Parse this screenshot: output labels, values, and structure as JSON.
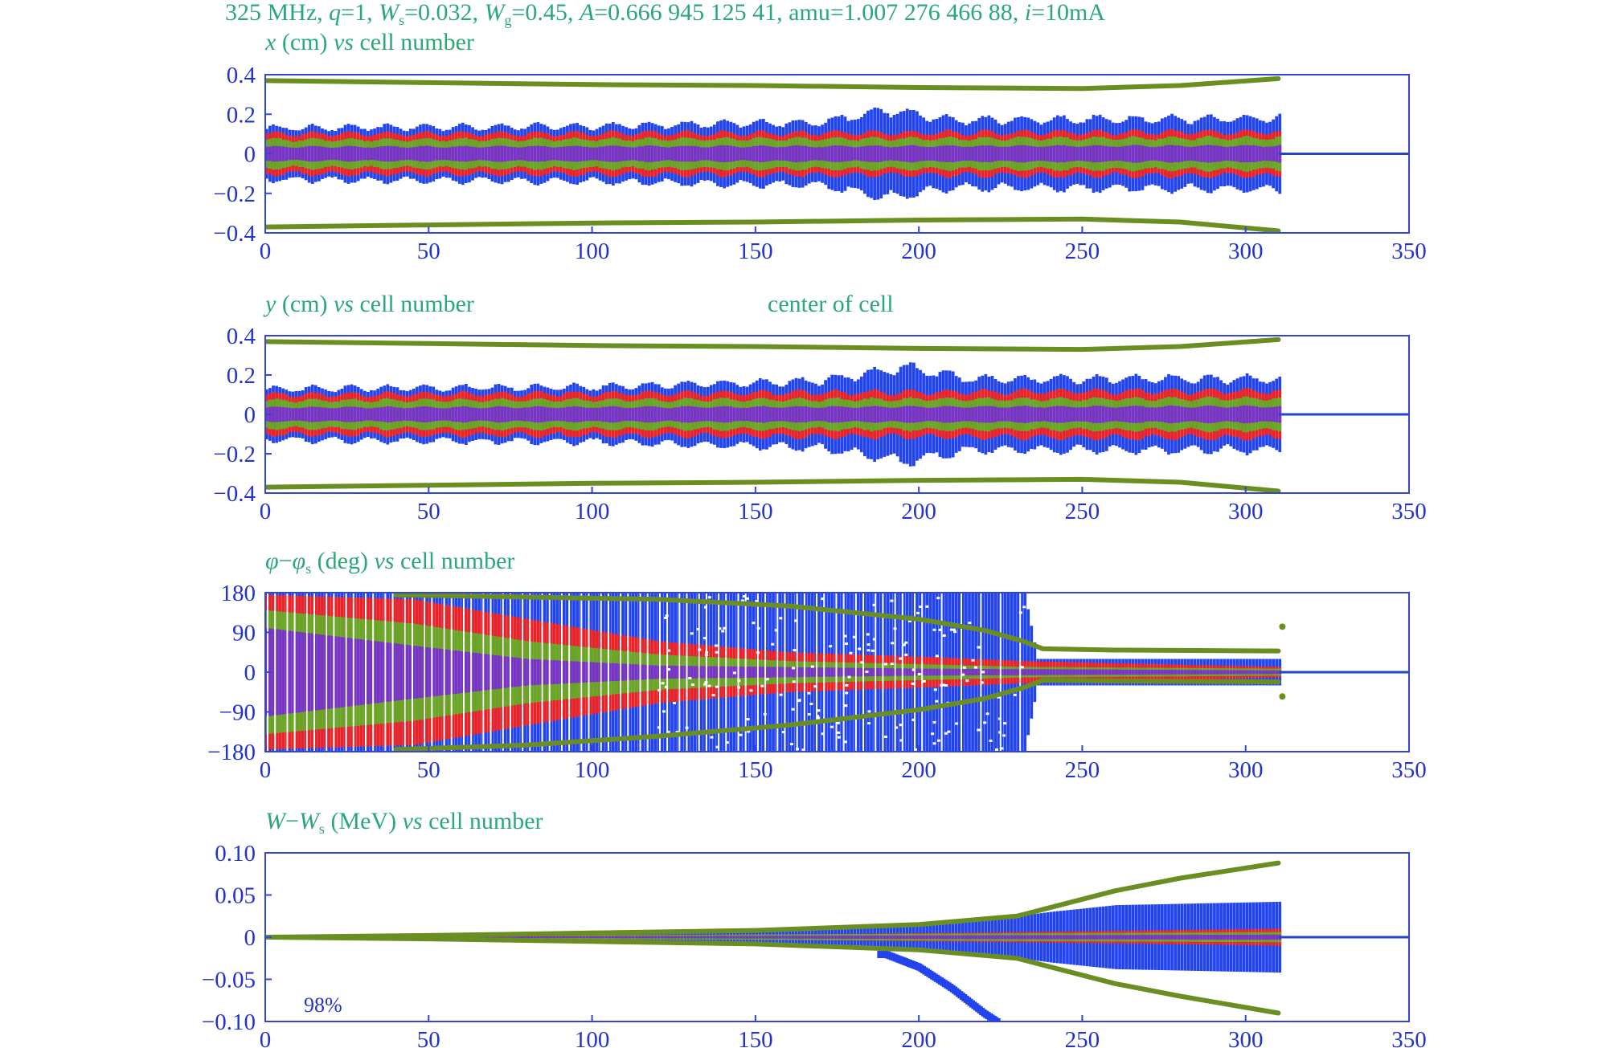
{
  "title": {
    "parts": [
      {
        "t": "325 MHz, "
      },
      {
        "t": "q",
        "i": true
      },
      {
        "t": "=1, "
      },
      {
        "t": "W",
        "i": true
      },
      {
        "t": "s",
        "sub": true
      },
      {
        "t": "=0.032, "
      },
      {
        "t": "W",
        "i": true
      },
      {
        "t": "g",
        "sub": true
      },
      {
        "t": "=0.45, "
      },
      {
        "t": "A",
        "i": true
      },
      {
        "t": "=0.666 945 125 41, amu=1.007 276 466 88, "
      },
      {
        "t": "i",
        "i": true
      },
      {
        "t": "=10mA"
      }
    ]
  },
  "colors": {
    "frame": "#3344dd",
    "tick_text": "#2233cc",
    "label_text": "#2aa878",
    "particles_outer": "#2244ee",
    "particles_red": "#ee2222",
    "particles_green": "#66aa22",
    "particles_core": "#7733cc",
    "envelope": "#6b8e23",
    "reference_line": "#2244cc"
  },
  "chart_data": [
    {
      "type": "scatter",
      "label_parts": [
        {
          "t": "x",
          "i": true
        },
        {
          "t": " (cm) "
        },
        {
          "t": "vs",
          "i": true
        },
        {
          "t": " cell number"
        }
      ],
      "xlim": [
        0,
        350
      ],
      "ylim": [
        -0.4,
        0.4
      ],
      "xticks": [
        0,
        50,
        100,
        150,
        200,
        250,
        300,
        350
      ],
      "yticks": [
        {
          "v": 0.4,
          "l": "0.4"
        },
        {
          "v": 0.2,
          "l": "0.2"
        },
        {
          "v": 0,
          "l": "0"
        },
        {
          "v": -0.2,
          "l": "−0.2"
        },
        {
          "v": -0.4,
          "l": "−0.4"
        }
      ],
      "end_cell": 310,
      "envelope_upper": [
        [
          0,
          0.37
        ],
        [
          50,
          0.36
        ],
        [
          100,
          0.35
        ],
        [
          150,
          0.345
        ],
        [
          200,
          0.335
        ],
        [
          250,
          0.33
        ],
        [
          280,
          0.345
        ],
        [
          310,
          0.38
        ]
      ],
      "envelope_lower": [
        [
          0,
          -0.37
        ],
        [
          50,
          -0.36
        ],
        [
          100,
          -0.35
        ],
        [
          150,
          -0.345
        ],
        [
          200,
          -0.335
        ],
        [
          250,
          -0.33
        ],
        [
          280,
          -0.345
        ],
        [
          310,
          -0.39
        ]
      ],
      "blue_half": [
        [
          0,
          0.13
        ],
        [
          100,
          0.14
        ],
        [
          170,
          0.16
        ],
        [
          190,
          0.22
        ],
        [
          210,
          0.17
        ],
        [
          310,
          0.18
        ]
      ],
      "red_half": [
        [
          0,
          0.1
        ],
        [
          310,
          0.11
        ]
      ],
      "green_half": [
        [
          0,
          0.07
        ],
        [
          310,
          0.08
        ]
      ],
      "core_half": [
        [
          0,
          0.035
        ],
        [
          310,
          0.04
        ]
      ],
      "center_offset": 0
    },
    {
      "type": "scatter",
      "label_parts": [
        {
          "t": "y",
          "i": true
        },
        {
          "t": " (cm) "
        },
        {
          "t": "vs",
          "i": true
        },
        {
          "t": " cell number"
        }
      ],
      "annotation": "center of cell",
      "xlim": [
        0,
        350
      ],
      "ylim": [
        -0.4,
        0.4
      ],
      "xticks": [
        0,
        50,
        100,
        150,
        200,
        250,
        300,
        350
      ],
      "yticks": [
        {
          "v": 0.4,
          "l": "0.4"
        },
        {
          "v": 0.2,
          "l": "0.2"
        },
        {
          "v": 0,
          "l": "0"
        },
        {
          "v": -0.2,
          "l": "−0.2"
        },
        {
          "v": -0.4,
          "l": "−0.4"
        }
      ],
      "end_cell": 310,
      "envelope_upper": [
        [
          0,
          0.37
        ],
        [
          50,
          0.36
        ],
        [
          100,
          0.35
        ],
        [
          150,
          0.345
        ],
        [
          200,
          0.335
        ],
        [
          250,
          0.33
        ],
        [
          280,
          0.345
        ],
        [
          310,
          0.38
        ]
      ],
      "envelope_lower": [
        [
          0,
          -0.37
        ],
        [
          50,
          -0.36
        ],
        [
          100,
          -0.35
        ],
        [
          150,
          -0.345
        ],
        [
          200,
          -0.335
        ],
        [
          250,
          -0.33
        ],
        [
          280,
          -0.345
        ],
        [
          310,
          -0.39
        ]
      ],
      "blue_half": [
        [
          0,
          0.13
        ],
        [
          100,
          0.14
        ],
        [
          170,
          0.17
        ],
        [
          195,
          0.24
        ],
        [
          215,
          0.18
        ],
        [
          310,
          0.18
        ]
      ],
      "red_half": [
        [
          0,
          0.1
        ],
        [
          310,
          0.12
        ]
      ],
      "green_half": [
        [
          0,
          0.07
        ],
        [
          310,
          0.08
        ]
      ],
      "core_half": [
        [
          0,
          0.035
        ],
        [
          310,
          0.04
        ]
      ],
      "center_offset": 0
    },
    {
      "type": "scatter",
      "label_parts": [
        {
          "t": "φ",
          "i": true
        },
        {
          "t": "−"
        },
        {
          "t": "φ",
          "i": true
        },
        {
          "t": "s",
          "sub": true
        },
        {
          "t": " (deg) "
        },
        {
          "t": "vs",
          "i": true
        },
        {
          "t": " cell number"
        }
      ],
      "xlim": [
        0,
        350
      ],
      "ylim": [
        -180,
        180
      ],
      "xticks": [
        0,
        50,
        100,
        150,
        200,
        250,
        300,
        350
      ],
      "yticks": [
        {
          "v": 180,
          "l": "180"
        },
        {
          "v": 90,
          "l": "90"
        },
        {
          "v": 0,
          "l": "0"
        },
        {
          "v": -90,
          "l": "−90"
        },
        {
          "v": -180,
          "l": "−180"
        }
      ],
      "end_cell": 310,
      "envelope_upper": [
        [
          40,
          175
        ],
        [
          80,
          170
        ],
        [
          120,
          165
        ],
        [
          160,
          150
        ],
        [
          200,
          120
        ],
        [
          220,
          95
        ],
        [
          232,
          70
        ],
        [
          238,
          53
        ],
        [
          260,
          50
        ],
        [
          310,
          48
        ]
      ],
      "envelope_lower": [
        [
          40,
          -175
        ],
        [
          80,
          -165
        ],
        [
          120,
          -145
        ],
        [
          160,
          -120
        ],
        [
          200,
          -85
        ],
        [
          220,
          -60
        ],
        [
          232,
          -35
        ],
        [
          238,
          -18
        ],
        [
          260,
          -20
        ],
        [
          310,
          -22
        ]
      ],
      "blue_half": [
        [
          0,
          180
        ],
        [
          232,
          180
        ],
        [
          236,
          30
        ],
        [
          310,
          30
        ]
      ],
      "red_half": [
        [
          0,
          175
        ],
        [
          45,
          165
        ],
        [
          80,
          120
        ],
        [
          120,
          70
        ],
        [
          160,
          45
        ],
        [
          200,
          35
        ],
        [
          232,
          25
        ],
        [
          310,
          12
        ]
      ],
      "green_half": [
        [
          0,
          140
        ],
        [
          45,
          110
        ],
        [
          80,
          70
        ],
        [
          120,
          40
        ],
        [
          160,
          25
        ],
        [
          200,
          18
        ],
        [
          232,
          12
        ],
        [
          310,
          8
        ]
      ],
      "core_half": [
        [
          0,
          100
        ],
        [
          45,
          60
        ],
        [
          80,
          30
        ],
        [
          120,
          15
        ],
        [
          200,
          8
        ],
        [
          310,
          4
        ]
      ],
      "center_offset": 0,
      "isolated_points": [
        [
          310,
          103
        ],
        [
          310,
          -55
        ]
      ]
    },
    {
      "type": "scatter",
      "label_parts": [
        {
          "t": "W",
          "i": true
        },
        {
          "t": "−"
        },
        {
          "t": "W",
          "i": true
        },
        {
          "t": "s",
          "sub": true
        },
        {
          "t": " (MeV) "
        },
        {
          "t": "vs",
          "i": true
        },
        {
          "t": " cell number"
        }
      ],
      "annotation": "98%",
      "xlim": [
        0,
        350
      ],
      "ylim": [
        -0.1,
        0.1
      ],
      "xticks": [
        0,
        50,
        100,
        150,
        200,
        250,
        300,
        350
      ],
      "yticks": [
        {
          "v": 0.1,
          "l": "0.10"
        },
        {
          "v": 0.05,
          "l": "0.05"
        },
        {
          "v": 0,
          "l": "0"
        },
        {
          "v": -0.05,
          "l": "−0.05"
        },
        {
          "v": -0.1,
          "l": "−0.10"
        }
      ],
      "end_cell": 310,
      "envelope_upper": [
        [
          0,
          0.0
        ],
        [
          50,
          0.002
        ],
        [
          100,
          0.005
        ],
        [
          150,
          0.008
        ],
        [
          200,
          0.015
        ],
        [
          230,
          0.025
        ],
        [
          240,
          0.035
        ],
        [
          260,
          0.055
        ],
        [
          280,
          0.07
        ],
        [
          310,
          0.088
        ]
      ],
      "envelope_lower": [
        [
          0,
          0.0
        ],
        [
          50,
          -0.002
        ],
        [
          100,
          -0.005
        ],
        [
          150,
          -0.008
        ],
        [
          200,
          -0.015
        ],
        [
          230,
          -0.025
        ],
        [
          240,
          -0.035
        ],
        [
          260,
          -0.055
        ],
        [
          280,
          -0.07
        ],
        [
          310,
          -0.09
        ]
      ],
      "blue_half": [
        [
          0,
          0.002
        ],
        [
          100,
          0.005
        ],
        [
          180,
          0.01
        ],
        [
          220,
          0.02
        ],
        [
          240,
          0.03
        ],
        [
          260,
          0.038
        ],
        [
          310,
          0.042
        ]
      ],
      "red_half": [
        [
          0,
          0.001
        ],
        [
          150,
          0.003
        ],
        [
          230,
          0.006
        ],
        [
          310,
          0.01
        ]
      ],
      "green_half": [
        [
          0,
          0.0006
        ],
        [
          310,
          0.006
        ]
      ],
      "core_half": [
        [
          0,
          0.0003
        ],
        [
          310,
          0.003
        ]
      ],
      "center_offset": 0,
      "tail_curve": [
        [
          190,
          -0.02
        ],
        [
          200,
          -0.035
        ],
        [
          210,
          -0.06
        ],
        [
          220,
          -0.09
        ],
        [
          224,
          -0.1
        ]
      ]
    }
  ]
}
